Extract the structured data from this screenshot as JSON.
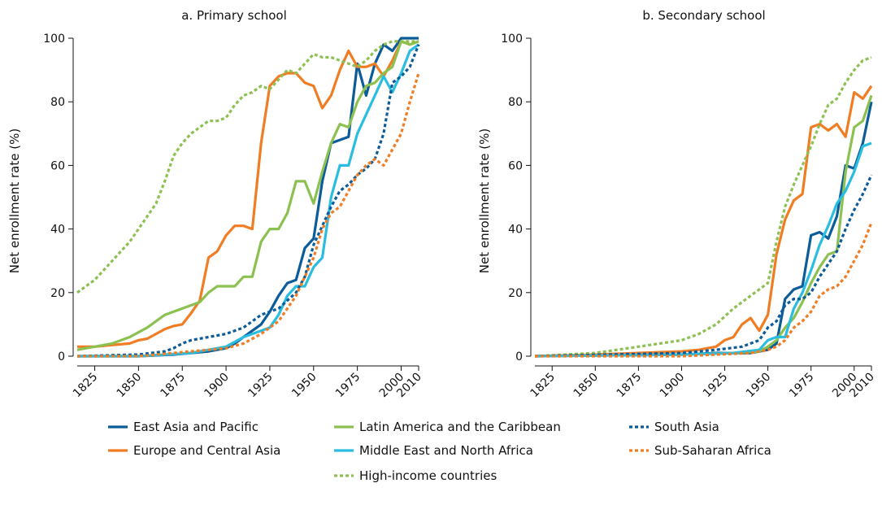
{
  "colors": {
    "east_asia": "#0c5c99",
    "europe": "#f07d23",
    "latam": "#8cc152",
    "mena": "#2bbde0",
    "south_asia": "#0c5c99",
    "ssa": "#f07d23",
    "high_income": "#8cc152"
  },
  "legend": {
    "items": [
      {
        "key": "east_asia",
        "label": "East Asia and Pacific",
        "dash": "solid"
      },
      {
        "key": "europe",
        "label": "Europe and Central Asia",
        "dash": "solid"
      },
      {
        "key": "latam",
        "label": "Latin America and the Caribbean",
        "dash": "solid"
      },
      {
        "key": "mena",
        "label": "Middle East and North Africa",
        "dash": "solid"
      },
      {
        "key": "high_income",
        "label": "High-income countries",
        "dash": "dotted"
      },
      {
        "key": "south_asia",
        "label": "South Asia",
        "dash": "dotted"
      },
      {
        "key": "ssa",
        "label": "Sub-Saharan Africa",
        "dash": "dotted"
      }
    ]
  },
  "chart_data": [
    {
      "type": "line",
      "title": "a. Primary school",
      "xlabel": "",
      "ylabel": "Net enrollment rate (%)",
      "xlim": [
        1815,
        2010
      ],
      "ylim": [
        0,
        100
      ],
      "xticks": [
        "1825",
        "1850",
        "1875",
        "1900",
        "1925",
        "1950",
        "1975",
        "2000",
        "2010"
      ],
      "yticks": [
        "0",
        "20",
        "40",
        "60",
        "80",
        "100"
      ],
      "grid": false,
      "series": [
        {
          "key": "east_asia",
          "name": "East Asia and Pacific",
          "dash": "solid",
          "x": [
            1815,
            1830,
            1850,
            1870,
            1880,
            1890,
            1900,
            1905,
            1910,
            1915,
            1920,
            1925,
            1930,
            1935,
            1940,
            1945,
            1950,
            1955,
            1960,
            1965,
            1970,
            1975,
            1980,
            1985,
            1990,
            1995,
            2000,
            2005,
            2010
          ],
          "y": [
            0,
            0,
            0,
            0.5,
            1,
            1.5,
            2.5,
            4,
            6,
            8,
            10,
            14,
            19,
            23,
            24,
            34,
            37,
            55,
            67,
            68,
            69,
            92,
            82,
            92,
            98,
            96,
            100,
            100,
            100
          ]
        },
        {
          "key": "europe",
          "name": "Europe and Central Asia",
          "dash": "solid",
          "x": [
            1815,
            1825,
            1835,
            1845,
            1850,
            1855,
            1860,
            1865,
            1870,
            1875,
            1880,
            1885,
            1890,
            1895,
            1900,
            1905,
            1910,
            1915,
            1920,
            1925,
            1930,
            1935,
            1940,
            1945,
            1950,
            1955,
            1960,
            1965,
            1970,
            1975,
            1980,
            1985,
            1990,
            1995,
            2000,
            2005,
            2010
          ],
          "y": [
            3,
            3,
            3.5,
            4,
            5,
            5.5,
            7,
            8.5,
            9.5,
            10,
            13.5,
            17.5,
            31,
            33,
            38,
            41,
            41,
            40,
            67,
            85,
            88,
            89,
            89,
            86,
            85,
            78,
            82,
            90,
            96,
            91,
            91,
            92,
            88,
            93,
            99,
            98,
            99
          ]
        },
        {
          "key": "latam",
          "name": "Latin America and the Caribbean",
          "dash": "solid",
          "x": [
            1815,
            1825,
            1835,
            1845,
            1855,
            1865,
            1875,
            1885,
            1890,
            1895,
            1900,
            1905,
            1910,
            1915,
            1920,
            1925,
            1930,
            1935,
            1940,
            1945,
            1950,
            1955,
            1960,
            1965,
            1970,
            1975,
            1980,
            1985,
            1990,
            1995,
            2000,
            2005,
            2010
          ],
          "y": [
            2,
            3,
            4,
            6,
            9,
            13,
            15,
            17,
            20,
            22,
            22,
            22,
            25,
            25,
            36,
            40,
            40,
            45,
            55,
            55,
            48,
            58,
            67,
            73,
            72,
            80,
            85,
            86,
            89,
            91,
            99,
            98,
            99
          ]
        },
        {
          "key": "mena",
          "name": "Middle East and North Africa",
          "dash": "solid",
          "x": [
            1815,
            1850,
            1880,
            1900,
            1910,
            1920,
            1925,
            1930,
            1935,
            1940,
            1945,
            1950,
            1955,
            1960,
            1965,
            1970,
            1975,
            1980,
            1985,
            1990,
            1995,
            2000,
            2005,
            2010
          ],
          "y": [
            0,
            0,
            1,
            3,
            6,
            8,
            9,
            13,
            19,
            22,
            22,
            28,
            31,
            50,
            60,
            60,
            70,
            76,
            82,
            88,
            83,
            89,
            96,
            98
          ]
        },
        {
          "key": "high_income",
          "name": "High-income countries",
          "dash": "dotted",
          "x": [
            1815,
            1825,
            1835,
            1845,
            1855,
            1860,
            1865,
            1870,
            1875,
            1880,
            1885,
            1890,
            1895,
            1900,
            1905,
            1910,
            1915,
            1920,
            1925,
            1930,
            1935,
            1940,
            1945,
            1950,
            1955,
            1960,
            1965,
            1970,
            1975,
            1980,
            1985,
            1990,
            1995,
            2000,
            2005,
            2010
          ],
          "y": [
            20,
            24,
            30,
            36,
            44,
            48,
            55,
            63,
            67,
            70,
            72,
            74,
            74,
            75,
            79,
            82,
            83,
            85,
            84,
            87,
            90,
            89,
            92,
            95,
            94,
            94,
            93,
            92,
            91,
            93,
            96,
            98,
            99,
            99,
            99,
            99
          ]
        },
        {
          "key": "south_asia",
          "name": "South Asia",
          "dash": "dotted",
          "x": [
            1815,
            1850,
            1865,
            1870,
            1875,
            1880,
            1890,
            1900,
            1910,
            1920,
            1930,
            1940,
            1945,
            1950,
            1960,
            1965,
            1970,
            1975,
            1980,
            1985,
            1990,
            1995,
            2000,
            2005,
            2010
          ],
          "y": [
            0,
            0.5,
            1.5,
            2.5,
            4,
            5,
            6,
            7,
            9,
            13,
            15,
            20,
            25,
            35,
            47,
            52,
            54,
            57,
            59,
            62,
            70,
            86,
            88,
            91,
            98
          ]
        },
        {
          "key": "ssa",
          "name": "Sub-Saharan Africa",
          "dash": "dotted",
          "x": [
            1815,
            1850,
            1870,
            1880,
            1890,
            1900,
            1910,
            1920,
            1930,
            1940,
            1945,
            1950,
            1955,
            1960,
            1965,
            1970,
            1975,
            1980,
            1985,
            1990,
            1995,
            2000,
            2005,
            2010
          ],
          "y": [
            0,
            0,
            1,
            1.5,
            2,
            2.5,
            4,
            7,
            11,
            19,
            25,
            31,
            40,
            45,
            47,
            52,
            57,
            60,
            62,
            60,
            65,
            70,
            80,
            89
          ]
        }
      ]
    },
    {
      "type": "line",
      "title": "b. Secondary school",
      "xlabel": "",
      "ylabel": "Net enrollment rate (%)",
      "xlim": [
        1815,
        2010
      ],
      "ylim": [
        0,
        100
      ],
      "xticks": [
        "1825",
        "1850",
        "1875",
        "1900",
        "1925",
        "1950",
        "1975",
        "2000",
        "2010"
      ],
      "yticks": [
        "0",
        "20",
        "40",
        "60",
        "80",
        "100"
      ],
      "grid": false,
      "series": [
        {
          "key": "east_asia",
          "name": "East Asia and Pacific",
          "dash": "solid",
          "x": [
            1815,
            1900,
            1920,
            1940,
            1950,
            1955,
            1960,
            1965,
            1970,
            1975,
            1980,
            1985,
            1990,
            1995,
            2000,
            2005,
            2010
          ],
          "y": [
            0,
            0.5,
            1,
            1,
            2,
            4,
            18,
            21,
            22,
            38,
            39,
            37,
            44,
            60,
            59,
            67,
            80
          ]
        },
        {
          "key": "europe",
          "name": "Europe and Central Asia",
          "dash": "solid",
          "x": [
            1815,
            1850,
            1875,
            1900,
            1910,
            1915,
            1920,
            1925,
            1930,
            1935,
            1940,
            1945,
            1950,
            1955,
            1960,
            1965,
            1970,
            1975,
            1980,
            1985,
            1990,
            1995,
            2000,
            2005,
            2010
          ],
          "y": [
            0,
            0.5,
            1,
            1.5,
            2,
            2.5,
            3,
            5,
            6,
            10,
            12,
            8,
            13,
            32,
            43,
            49,
            51,
            72,
            73,
            71,
            73,
            69,
            83,
            81,
            85
          ]
        },
        {
          "key": "latam",
          "name": "Latin America and the Caribbean",
          "dash": "solid",
          "x": [
            1815,
            1900,
            1930,
            1945,
            1950,
            1955,
            1960,
            1965,
            1970,
            1975,
            1980,
            1985,
            1990,
            1995,
            2000,
            2005,
            2010
          ],
          "y": [
            0,
            0.5,
            1,
            1.5,
            3,
            5,
            9,
            12,
            17,
            23,
            28,
            32,
            33,
            58,
            72,
            74,
            82
          ]
        },
        {
          "key": "mena",
          "name": "Middle East and North Africa",
          "dash": "solid",
          "x": [
            1815,
            1900,
            1930,
            1945,
            1950,
            1955,
            1960,
            1965,
            1970,
            1975,
            1980,
            1985,
            1990,
            1995,
            2000,
            2005,
            2010
          ],
          "y": [
            0,
            0.5,
            1,
            2,
            5,
            6,
            6,
            15,
            20,
            27,
            35,
            41,
            48,
            52,
            58,
            66,
            67
          ]
        },
        {
          "key": "high_income",
          "name": "High-income countries",
          "dash": "dotted",
          "x": [
            1815,
            1850,
            1875,
            1900,
            1910,
            1920,
            1930,
            1940,
            1950,
            1955,
            1960,
            1965,
            1970,
            1975,
            1980,
            1985,
            1990,
            1995,
            2000,
            2005,
            2010
          ],
          "y": [
            0,
            1,
            3,
            5,
            7,
            10,
            15,
            19,
            23,
            36,
            47,
            54,
            60,
            66,
            73,
            79,
            81,
            86,
            90,
            93,
            94
          ]
        },
        {
          "key": "south_asia",
          "name": "South Asia",
          "dash": "dotted",
          "x": [
            1815,
            1900,
            1920,
            1935,
            1945,
            1950,
            1955,
            1960,
            1965,
            1970,
            1975,
            1980,
            1985,
            1990,
            1995,
            2000,
            2005,
            2010
          ],
          "y": [
            0,
            1,
            2,
            3,
            5,
            9,
            11,
            16,
            18,
            18,
            20,
            25,
            29,
            33,
            40,
            46,
            51,
            57
          ]
        },
        {
          "key": "ssa",
          "name": "Sub-Saharan Africa",
          "dash": "dotted",
          "x": [
            1815,
            1900,
            1940,
            1950,
            1955,
            1960,
            1965,
            1970,
            1975,
            1980,
            1985,
            1990,
            1995,
            2000,
            2005,
            2010
          ],
          "y": [
            0,
            0,
            1,
            2,
            3,
            5,
            9,
            11,
            14,
            19,
            21,
            22,
            25,
            30,
            35,
            42
          ]
        }
      ]
    }
  ]
}
